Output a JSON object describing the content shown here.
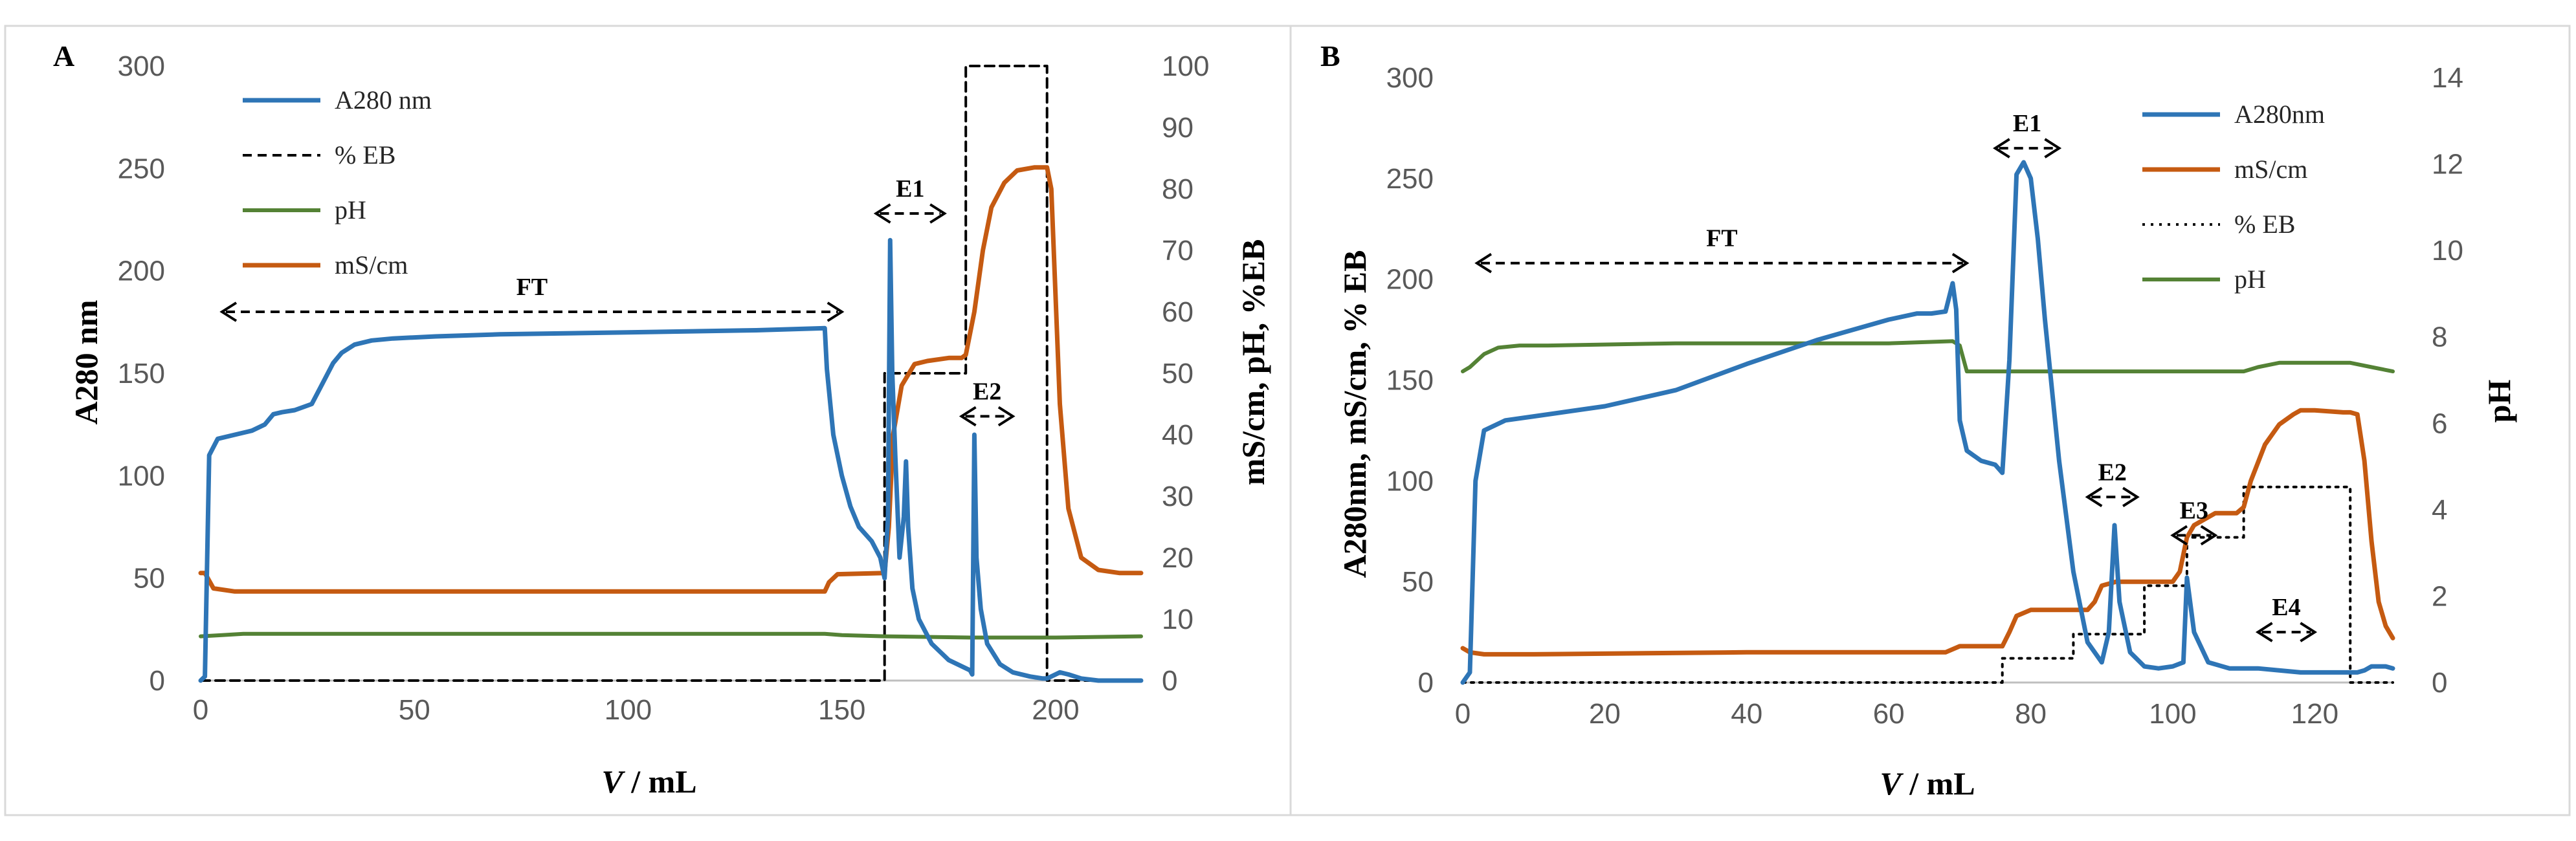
{
  "chart_data": [
    {
      "panel_label": "A",
      "type": "line",
      "xlabel_italic": "V",
      "xlabel_rest": " / mL",
      "ylabel_left": "A280 nm",
      "ylabel_right": "mS/cm, pH, %EB",
      "xlim": [
        0,
        220
      ],
      "ylim_left": [
        0,
        300
      ],
      "ylim_right": [
        0,
        100
      ],
      "xticks": [
        0,
        50,
        100,
        150,
        200
      ],
      "yticks_left": [
        0,
        50,
        100,
        150,
        200,
        250,
        300
      ],
      "yticks_right": [
        0,
        10,
        20,
        30,
        40,
        50,
        60,
        70,
        80,
        90,
        100
      ],
      "legend": [
        {
          "label": "A280 nm",
          "series": "A280"
        },
        {
          "label": "% EB",
          "series": "EB"
        },
        {
          "label": "pH",
          "series": "pH"
        },
        {
          "label": "mS/cm",
          "series": "cond"
        }
      ],
      "series": [
        {
          "name": "A280",
          "axis": "left",
          "color": "#2e75b6",
          "style": "solid",
          "x": [
            0,
            1,
            2,
            4,
            8,
            12,
            15,
            17,
            19,
            22,
            26,
            28,
            31,
            33,
            36,
            40,
            45,
            55,
            70,
            100,
            130,
            146,
            146.5,
            148,
            150,
            152,
            154,
            157,
            159,
            160,
            160.8,
            161.3,
            161.8,
            162.5,
            163.5,
            164.5,
            165,
            165.5,
            166.5,
            168,
            171,
            175,
            180,
            180.5,
            181,
            181.5,
            182.5,
            184,
            187,
            190,
            194,
            197,
            198,
            199,
            201,
            203,
            206,
            210,
            215,
            220
          ],
          "y": [
            0,
            2,
            110,
            118,
            120,
            122,
            125,
            130,
            131,
            132,
            135,
            143,
            155,
            160,
            164,
            166,
            167,
            168,
            169,
            170,
            171,
            172,
            152,
            120,
            100,
            85,
            75,
            68,
            60,
            50,
            80,
            215,
            150,
            110,
            60,
            80,
            107,
            75,
            45,
            30,
            18,
            10,
            5,
            3,
            120,
            60,
            35,
            18,
            8,
            4,
            2,
            1,
            1,
            2,
            4,
            3,
            1,
            0,
            0,
            0
          ]
        },
        {
          "name": "EB",
          "axis": "right",
          "color": "#000000",
          "style": "dashed",
          "x": [
            0,
            160,
            160,
            179,
            179,
            198,
            198,
            220
          ],
          "y": [
            0,
            0,
            50,
            50,
            100,
            100,
            0,
            0
          ]
        },
        {
          "name": "pH",
          "axis": "right",
          "color": "#548235",
          "style": "solid",
          "x": [
            0,
            5,
            10,
            100,
            146,
            150,
            160,
            180,
            200,
            220
          ],
          "y": [
            7.2,
            7.4,
            7.6,
            7.6,
            7.6,
            7.4,
            7.2,
            7.0,
            7.0,
            7.2
          ]
        },
        {
          "name": "cond",
          "axis": "right",
          "color": "#c55a11",
          "style": "solid",
          "x": [
            0,
            1,
            3,
            8,
            50,
            100,
            146,
            147,
            149,
            160,
            161,
            162,
            164,
            167,
            170,
            175,
            178,
            179,
            181,
            183,
            185,
            188,
            191,
            195,
            198,
            199,
            201,
            203,
            206,
            210,
            215,
            220
          ],
          "y": [
            17.5,
            17.5,
            15,
            14.5,
            14.5,
            14.5,
            14.5,
            16,
            17.3,
            17.5,
            25,
            40,
            48,
            51.5,
            52,
            52.5,
            52.5,
            53,
            60,
            70,
            77,
            81,
            83,
            83.5,
            83.5,
            80,
            45,
            28,
            20,
            18,
            17.5,
            17.5
          ]
        }
      ],
      "annotations": [
        {
          "label": "FT",
          "x_from": 5,
          "x_to": 150,
          "y": 180
        },
        {
          "label": "E1",
          "x_from": 158,
          "x_to": 174,
          "y": 228
        },
        {
          "label": "E2",
          "x_from": 178,
          "x_to": 190,
          "y": 129
        }
      ]
    },
    {
      "panel_label": "B",
      "type": "line",
      "xlabel_italic": "V",
      "xlabel_rest": " / mL",
      "ylabel_left": "A280nm, mS/cm, % EB",
      "ylabel_right": "pH",
      "xlim": [
        0,
        131
      ],
      "ylim_left": [
        0,
        300
      ],
      "ylim_right": [
        0,
        14
      ],
      "xticks": [
        0,
        20,
        40,
        60,
        80,
        100,
        120
      ],
      "yticks_left": [
        0,
        50,
        100,
        150,
        200,
        250,
        300
      ],
      "yticks_right": [
        0,
        2,
        4,
        6,
        8,
        10,
        12,
        14
      ],
      "legend": [
        {
          "label": "A280nm",
          "series": "A280"
        },
        {
          "label": "mS/cm",
          "series": "cond"
        },
        {
          "label": "% EB",
          "series": "EB"
        },
        {
          "label": "pH",
          "series": "pH"
        }
      ],
      "series": [
        {
          "name": "A280",
          "axis": "left",
          "color": "#2e75b6",
          "style": "solid",
          "x": [
            0,
            1,
            1.8,
            3,
            6,
            10,
            20,
            30,
            40,
            50,
            56,
            60,
            64,
            66,
            68,
            69,
            69.5,
            70,
            71,
            73,
            75,
            76,
            77,
            78,
            79,
            80,
            81,
            82,
            84,
            86,
            88,
            90,
            91,
            91.8,
            92.5,
            94,
            96,
            98,
            100,
            101.5,
            102,
            103,
            105,
            108,
            112,
            118,
            122,
            124,
            126,
            127,
            128,
            130,
            131
          ],
          "y": [
            0,
            5,
            100,
            125,
            130,
            132,
            137,
            145,
            158,
            170,
            176,
            180,
            183,
            183,
            184,
            198,
            185,
            130,
            115,
            110,
            108,
            104,
            160,
            252,
            258,
            250,
            220,
            180,
            110,
            55,
            20,
            10,
            25,
            78,
            40,
            15,
            8,
            7,
            8,
            10,
            52,
            25,
            10,
            7,
            7,
            5,
            5,
            5,
            5,
            6,
            8,
            8,
            7
          ]
        },
        {
          "name": "cond",
          "axis": "left",
          "color": "#c55a11",
          "style": "solid",
          "x": [
            0,
            1,
            3,
            10,
            40,
            68,
            70,
            75,
            76,
            77,
            78,
            80,
            85,
            88,
            89,
            90,
            92,
            100,
            101,
            102,
            103,
            104,
            106,
            109,
            110,
            111,
            113,
            115,
            117,
            118,
            120,
            124,
            125,
            126,
            127,
            128,
            129,
            130,
            131
          ],
          "y": [
            17,
            15,
            14,
            14,
            15,
            15,
            18,
            18,
            18,
            25,
            33,
            36,
            36,
            36,
            40,
            48,
            50,
            50,
            55,
            72,
            78,
            80,
            84,
            84,
            87,
            100,
            118,
            128,
            133,
            135,
            135,
            134,
            134,
            133,
            110,
            70,
            40,
            28,
            22
          ]
        },
        {
          "name": "EB",
          "axis": "left",
          "color": "#000000",
          "style": "dotted",
          "x": [
            0,
            76,
            76,
            86,
            86,
            96,
            96,
            102,
            102,
            110,
            110,
            125,
            125,
            131
          ],
          "y": [
            0,
            0,
            12,
            12,
            24,
            24,
            48,
            48,
            72,
            72,
            97,
            97,
            0,
            0
          ]
        },
        {
          "name": "pH",
          "axis": "right",
          "color": "#548235",
          "style": "solid",
          "x": [
            0,
            1,
            3,
            5,
            8,
            12,
            30,
            60,
            69,
            70,
            71,
            90,
            110,
            112,
            115,
            125,
            128,
            131
          ],
          "y": [
            7.2,
            7.3,
            7.6,
            7.75,
            7.8,
            7.8,
            7.85,
            7.85,
            7.9,
            7.8,
            7.2,
            7.2,
            7.2,
            7.3,
            7.4,
            7.4,
            7.3,
            7.2
          ]
        }
      ],
      "annotations": [
        {
          "label": "FT",
          "x_from": 2,
          "x_to": 71,
          "y": 208
        },
        {
          "label": "E1",
          "x_from": 75,
          "x_to": 84,
          "y": 265
        },
        {
          "label": "E2",
          "x_from": 88,
          "x_to": 95,
          "y": 92
        },
        {
          "label": "E3",
          "x_from": 100,
          "x_to": 106,
          "y": 73
        },
        {
          "label": "E4",
          "x_from": 112,
          "x_to": 120,
          "y": 25
        }
      ]
    }
  ]
}
